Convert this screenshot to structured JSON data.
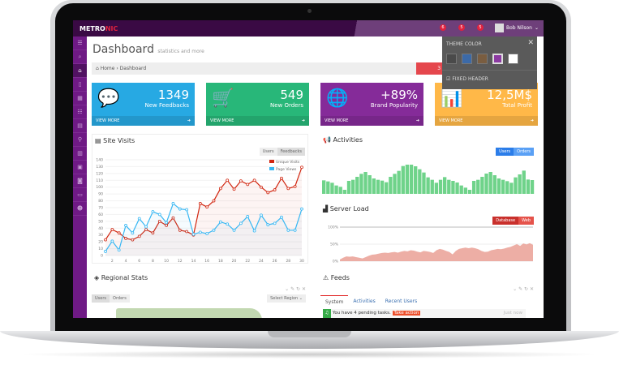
{
  "app": {
    "logo_main": "METRO",
    "logo_accent": "NIC",
    "user_name": "Bob Nilson",
    "notifications": [
      "6",
      "5",
      "5"
    ]
  },
  "sidebar_icons": [
    "menu-icon",
    "search-icon",
    "home-icon",
    "bookmark-icon",
    "table-icon",
    "list-icon",
    "grid-icon",
    "map-pin-icon",
    "chart-icon",
    "calendar-icon",
    "camera-icon",
    "briefcase-icon",
    "user-icon"
  ],
  "page": {
    "title": "Dashboard",
    "subtitle": "statistics and more",
    "breadcrumb": [
      "Home",
      "Dashboard"
    ],
    "range_button": "3"
  },
  "theme_panel": {
    "title": "THEME COLOR",
    "colors": [
      "#4a4a4a",
      "#3c6aa8",
      "#7a5d40",
      "#8c3aa2",
      "#ffffff"
    ],
    "selected": "#8c3aa2",
    "fixed_header": "FIXED HEADER"
  },
  "tiles": [
    {
      "value": "1349",
      "label": "New Feedbacks",
      "color": "#27a9e3",
      "icon": "comments-icon",
      "more": "VIEW MORE"
    },
    {
      "value": "549",
      "label": "New Orders",
      "color": "#28b779",
      "icon": "cart-icon",
      "more": "VIEW MORE"
    },
    {
      "value": "+89%",
      "label": "Brand Popularity",
      "color": "#852b99",
      "icon": "globe-icon",
      "more": "VIEW MORE"
    },
    {
      "value": "12,5M$",
      "label": "Total Profit",
      "color": "#ffb848",
      "icon": "bar-chart-icon",
      "more": "VIEW MORE"
    }
  ],
  "site_visits": {
    "title": "Site Visits",
    "buttons": [
      "Users",
      "Feedbacks"
    ]
  },
  "chart_data": [
    {
      "type": "line",
      "title": "Site Visits",
      "ylim": [
        0,
        140
      ],
      "yticks": [
        0,
        10,
        20,
        30,
        40,
        50,
        60,
        70,
        80,
        90,
        100,
        110,
        120,
        130,
        140
      ],
      "xticks": [
        2,
        4,
        6,
        8,
        10,
        12,
        14,
        16,
        18,
        20,
        22,
        24,
        26,
        28,
        30
      ],
      "legend": "top-right",
      "grid": true,
      "x": [
        1,
        2,
        3,
        4,
        5,
        6,
        7,
        8,
        9,
        10,
        11,
        12,
        13,
        14,
        15,
        16,
        17,
        18,
        19,
        20,
        21,
        22,
        23,
        24,
        25,
        26,
        27,
        28,
        29,
        30
      ],
      "series": [
        {
          "name": "Unique Visits",
          "color": "#d12610",
          "values": [
            23,
            38,
            33,
            25,
            23,
            28,
            38,
            33,
            50,
            44,
            55,
            37,
            35,
            30,
            76,
            71,
            80,
            98,
            110,
            97,
            109,
            104,
            110,
            100,
            92,
            96,
            113,
            98,
            101,
            129
          ]
        },
        {
          "name": "Page Views",
          "color": "#37b7f3",
          "values": [
            6,
            21,
            8,
            44,
            33,
            54,
            42,
            64,
            60,
            48,
            76,
            68,
            67,
            31,
            34,
            32,
            37,
            49,
            46,
            37,
            47,
            57,
            36,
            59,
            45,
            47,
            56,
            37,
            37,
            68
          ]
        }
      ]
    },
    {
      "type": "bar",
      "title": "Activities",
      "color": "#6fd38a",
      "values": [
        5,
        4.6,
        4.1,
        3.1,
        2.6,
        1.5,
        4.8,
        5.2,
        6.3,
        7.4,
        8.1,
        6.9,
        5.7,
        5.2,
        4.9,
        4.3,
        6.3,
        7.4,
        8.5,
        10.3,
        10.8,
        10.8,
        10.2,
        9.1,
        7.9,
        6.1,
        5.2,
        4.1,
        5.2,
        6.2,
        5.2,
        4.8,
        4.2,
        3.1,
        2.3,
        1.5,
        4.8,
        5.2,
        6.3,
        7.5,
        8.1,
        6.9,
        5.7,
        5.2,
        4.7,
        4.1,
        6.1,
        7.2,
        8.6,
        5.3,
        5.1
      ]
    },
    {
      "type": "area",
      "title": "Server Load",
      "ylim": [
        0,
        100
      ],
      "yticks": [
        "0%",
        "50%",
        "100%"
      ],
      "color": "#e99a8f",
      "values": [
        5,
        10,
        14,
        13,
        14,
        12,
        10,
        8,
        12,
        16,
        19,
        20,
        22,
        24,
        25,
        24,
        26,
        27,
        25,
        28,
        30,
        29,
        32,
        31,
        28,
        26,
        30,
        29,
        27,
        24,
        32,
        36,
        34,
        30,
        27,
        20,
        30,
        36,
        38,
        40,
        38,
        40,
        38,
        35,
        30,
        27,
        28,
        32,
        34,
        36,
        35,
        37,
        40,
        42,
        46,
        50,
        45,
        52,
        49,
        53,
        48
      ]
    }
  ],
  "activities": {
    "buttons": [
      "Users",
      "Orders"
    ]
  },
  "server_load": {
    "buttons": [
      "Database",
      "Web"
    ]
  },
  "regional": {
    "title": "Regional Stats",
    "buttons": [
      "Users",
      "Orders"
    ],
    "select": "Select Region"
  },
  "feeds": {
    "title": "Feeds",
    "tabs": [
      "System",
      "Activities",
      "Recent Users"
    ],
    "item": "You have 4 pending tasks.",
    "action": "Take action",
    "time": "Just now"
  }
}
